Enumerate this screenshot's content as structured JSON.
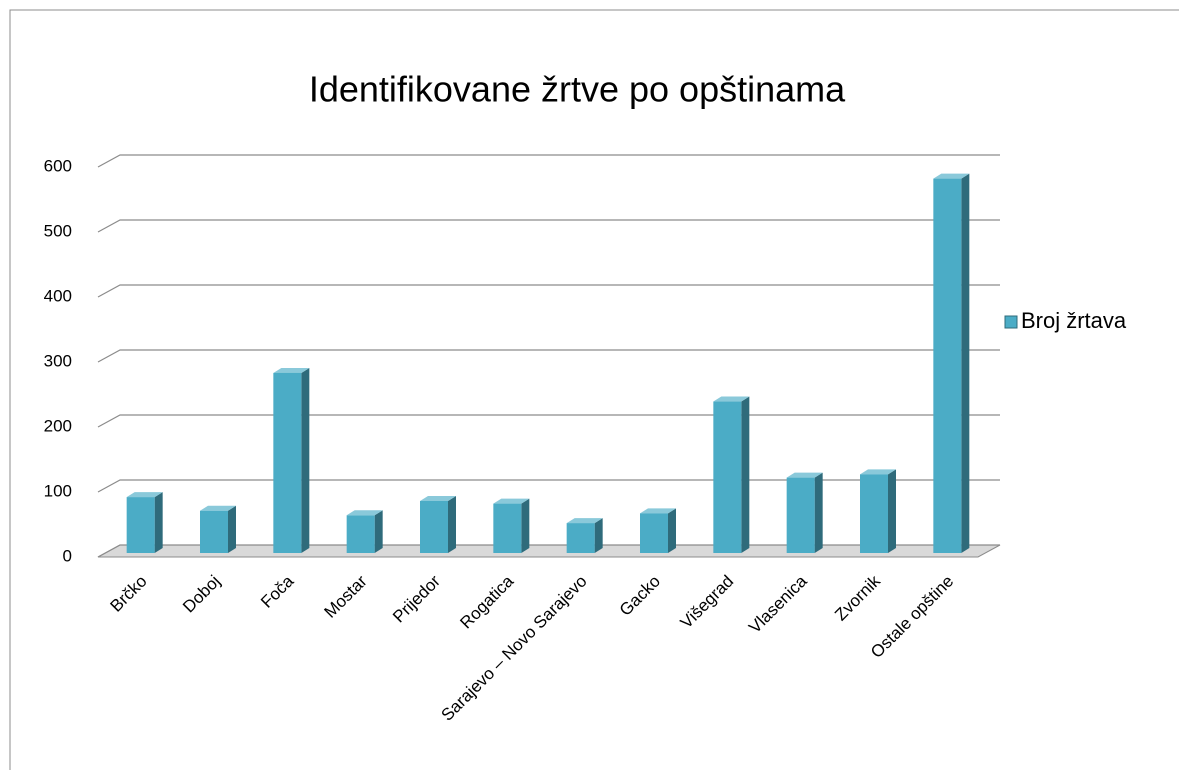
{
  "chart_data": {
    "type": "bar",
    "title": "Identifikovane žrtve po opštinama",
    "categories": [
      "Brčko",
      "Doboj",
      "Foča",
      "Mostar",
      "Prijedor",
      "Rogatica",
      "Sarajevo – Novo Sarajevo",
      "Gacko",
      "Višegrad",
      "Vlasenica",
      "Zvornik",
      "Ostale opštine"
    ],
    "series": [
      {
        "name": "Broj žrtava",
        "color": "#4bacc6",
        "values": [
          86,
          65,
          277,
          58,
          80,
          76,
          46,
          61,
          233,
          116,
          121,
          576
        ]
      }
    ],
    "ylim": [
      0,
      600
    ],
    "yticks": [
      0,
      100,
      200,
      300,
      400,
      500,
      600
    ],
    "grid": true,
    "legend": "right"
  }
}
